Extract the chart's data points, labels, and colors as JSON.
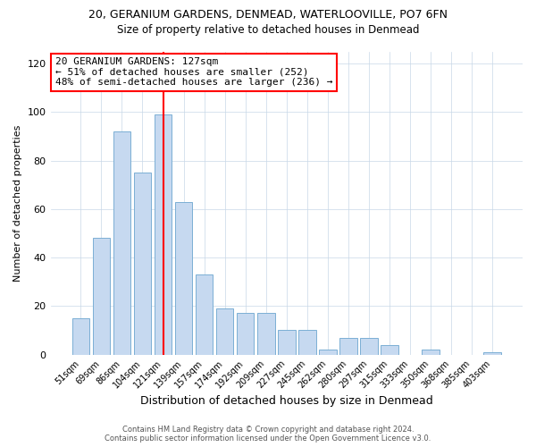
{
  "title1": "20, GERANIUM GARDENS, DENMEAD, WATERLOOVILLE, PO7 6FN",
  "title2": "Size of property relative to detached houses in Denmead",
  "xlabel": "Distribution of detached houses by size in Denmead",
  "ylabel": "Number of detached properties",
  "annotation_line1": "20 GERANIUM GARDENS: 127sqm",
  "annotation_line2": "← 51% of detached houses are smaller (252)",
  "annotation_line3": "48% of semi-detached houses are larger (236) →",
  "footer1": "Contains HM Land Registry data © Crown copyright and database right 2024.",
  "footer2": "Contains public sector information licensed under the Open Government Licence v3.0.",
  "categories": [
    "51sqm",
    "69sqm",
    "86sqm",
    "104sqm",
    "121sqm",
    "139sqm",
    "157sqm",
    "174sqm",
    "192sqm",
    "209sqm",
    "227sqm",
    "245sqm",
    "262sqm",
    "280sqm",
    "297sqm",
    "315sqm",
    "333sqm",
    "350sqm",
    "368sqm",
    "385sqm",
    "403sqm"
  ],
  "values": [
    15,
    48,
    92,
    75,
    99,
    63,
    33,
    19,
    17,
    17,
    10,
    10,
    2,
    7,
    7,
    4,
    0,
    2,
    0,
    0,
    1
  ],
  "bar_color": "#c6d9f0",
  "bar_edge_color": "#7bafd4",
  "redline_index": 4,
  "ylim": [
    0,
    125
  ],
  "yticks": [
    0,
    20,
    40,
    60,
    80,
    100,
    120
  ],
  "background_color": "#ffffff",
  "grid_color": "#c8d8e8"
}
